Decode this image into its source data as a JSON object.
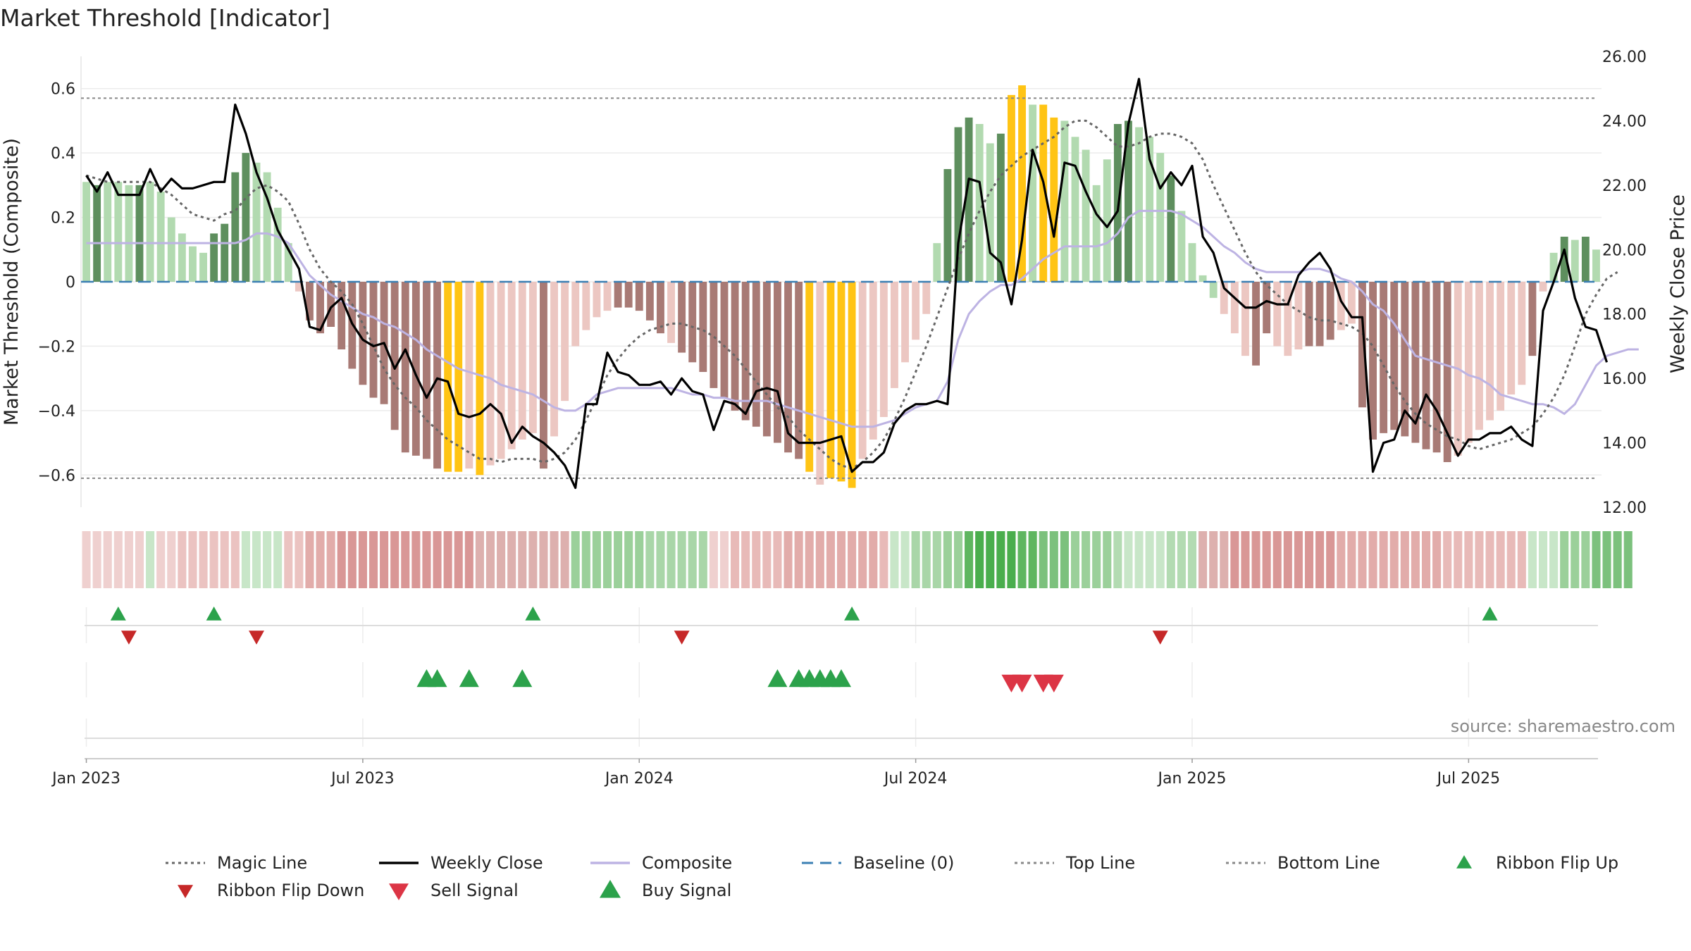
{
  "chart_data": {
    "type": "bar",
    "title": "Market Threshold [Indicator]",
    "source": "source: sharemaestro.com",
    "ylabel_left": "Market Threshold (Composite)",
    "ylabel_right": "Weekly Close Price",
    "ylim_left": [
      -0.7,
      0.7
    ],
    "ylim_right": [
      12,
      26
    ],
    "yticks_left": [
      "0.6",
      "0.4",
      "0.2",
      "0",
      "−0.2",
      "−0.4",
      "−0.6"
    ],
    "yticks_left_values": [
      0.6,
      0.4,
      0.2,
      0,
      -0.2,
      -0.4,
      -0.6
    ],
    "yticks_right": [
      "26.00",
      "24.00",
      "22.00",
      "20.00",
      "18.00",
      "16.00",
      "14.00",
      "12.00"
    ],
    "yticks_right_values": [
      26,
      24,
      22,
      20,
      18,
      16,
      14,
      12
    ],
    "xticks": [
      "Jan 2023",
      "Jul 2023",
      "Jan 2024",
      "Jul 2024",
      "Jan 2025",
      "Jul 2025"
    ],
    "xticks_week_index": [
      0.5,
      26.5,
      52.5,
      78.5,
      104.5,
      130.5
    ],
    "top_line": 0.57,
    "bottom_line": -0.61,
    "composite_values": [
      0.31,
      0.3,
      0.31,
      0.31,
      0.3,
      0.3,
      0.31,
      0.28,
      0.2,
      0.15,
      0.11,
      0.09,
      0.15,
      0.18,
      0.34,
      0.4,
      0.37,
      0.34,
      0.23,
      0.12,
      -0.03,
      -0.12,
      -0.16,
      -0.14,
      -0.21,
      -0.27,
      -0.32,
      -0.36,
      -0.38,
      -0.46,
      -0.53,
      -0.54,
      -0.55,
      -0.58,
      -0.59,
      -0.59,
      -0.58,
      -0.6,
      -0.57,
      -0.55,
      -0.52,
      -0.49,
      -0.47,
      -0.58,
      -0.48,
      -0.37,
      -0.2,
      -0.15,
      -0.11,
      -0.09,
      -0.08,
      -0.08,
      -0.09,
      -0.12,
      -0.16,
      -0.19,
      -0.22,
      -0.25,
      -0.28,
      -0.33,
      -0.36,
      -0.4,
      -0.43,
      -0.45,
      -0.48,
      -0.5,
      -0.53,
      -0.55,
      -0.59,
      -0.63,
      -0.61,
      -0.62,
      -0.64,
      -0.55,
      -0.49,
      -0.42,
      -0.33,
      -0.25,
      -0.18,
      -0.1,
      0.12,
      0.35,
      0.48,
      0.51,
      0.49,
      0.43,
      0.46,
      0.58,
      0.61,
      0.55,
      0.55,
      0.51,
      0.5,
      0.45,
      0.41,
      0.3,
      0.38,
      0.49,
      0.5,
      0.48,
      0.45,
      0.4,
      0.33,
      0.22,
      0.12,
      0.02,
      -0.05,
      -0.1,
      -0.16,
      -0.23,
      -0.26,
      -0.16,
      -0.2,
      -0.23,
      -0.21,
      -0.2,
      -0.2,
      -0.18,
      -0.15,
      -0.13,
      -0.39,
      -0.49,
      -0.47,
      -0.46,
      -0.48,
      -0.5,
      -0.52,
      -0.53,
      -0.56,
      -0.54,
      -0.5,
      -0.46,
      -0.43,
      -0.4,
      -0.35,
      -0.32,
      -0.23,
      -0.03,
      0.09,
      0.14,
      0.13,
      0.14,
      0.1
    ],
    "composite_bar_colors": [
      "#b2dab0",
      "#5e8f5e",
      "#b2dab0",
      "#b2dab0",
      "#b2dab0",
      "#5e8f5e",
      "#b2dab0",
      "#b2dab0",
      "#b2dab0",
      "#b2dab0",
      "#b2dab0",
      "#b2dab0",
      "#5e8f5e",
      "#5e8f5e",
      "#5e8f5e",
      "#5e8f5e",
      "#b2dab0",
      "#b2dab0",
      "#b2dab0",
      "#b2dab0",
      "#ecc7c2",
      "#a87a75",
      "#a87a75",
      "#a87a75",
      "#a87a75",
      "#a87a75",
      "#a87a75",
      "#a87a75",
      "#a87a75",
      "#a87a75",
      "#a87a75",
      "#a87a75",
      "#a87a75",
      "#a87a75",
      "#ffc414",
      "#ffc414",
      "#ecc7c2",
      "#ffc414",
      "#ecc7c2",
      "#ecc7c2",
      "#ecc7c2",
      "#ecc7c2",
      "#ecc7c2",
      "#a87a75",
      "#ecc7c2",
      "#ecc7c2",
      "#ecc7c2",
      "#ecc7c2",
      "#ecc7c2",
      "#ecc7c2",
      "#a87a75",
      "#a87a75",
      "#a87a75",
      "#a87a75",
      "#a87a75",
      "#ecc7c2",
      "#a87a75",
      "#a87a75",
      "#a87a75",
      "#a87a75",
      "#a87a75",
      "#a87a75",
      "#a87a75",
      "#a87a75",
      "#a87a75",
      "#a87a75",
      "#a87a75",
      "#a87a75",
      "#ffc414",
      "#ecc7c2",
      "#ffc414",
      "#ffc414",
      "#ffc414",
      "#ecc7c2",
      "#ecc7c2",
      "#ecc7c2",
      "#ecc7c2",
      "#ecc7c2",
      "#ecc7c2",
      "#ecc7c2",
      "#b2dab0",
      "#5e8f5e",
      "#5e8f5e",
      "#5e8f5e",
      "#b2dab0",
      "#b2dab0",
      "#5e8f5e",
      "#ffc414",
      "#ffc414",
      "#b2dab0",
      "#ffc414",
      "#ffc414",
      "#b2dab0",
      "#b2dab0",
      "#b2dab0",
      "#b2dab0",
      "#b2dab0",
      "#5e8f5e",
      "#5e8f5e",
      "#b2dab0",
      "#b2dab0",
      "#b2dab0",
      "#5e8f5e",
      "#b2dab0",
      "#b2dab0",
      "#b2dab0",
      "#b2dab0",
      "#ecc7c2",
      "#ecc7c2",
      "#ecc7c2",
      "#a87a75",
      "#a87a75",
      "#ecc7c2",
      "#ecc7c2",
      "#ecc7c2",
      "#a87a75",
      "#a87a75",
      "#a87a75",
      "#ecc7c2",
      "#ecc7c2",
      "#a87a75",
      "#a87a75",
      "#a87a75",
      "#a87a75",
      "#a87a75",
      "#a87a75",
      "#a87a75",
      "#a87a75",
      "#a87a75",
      "#ecc7c2",
      "#ecc7c2",
      "#ecc7c2",
      "#ecc7c2",
      "#ecc7c2",
      "#ecc7c2",
      "#ecc7c2",
      "#a87a75",
      "#ecc7c2",
      "#b2dab0",
      "#5e8f5e",
      "#b2dab0",
      "#5e8f5e",
      "#b2dab0"
    ],
    "weekly_close": [
      22.3,
      21.8,
      22.4,
      21.7,
      21.7,
      21.7,
      22.5,
      21.8,
      22.2,
      21.9,
      21.9,
      22.0,
      22.1,
      22.1,
      24.5,
      23.6,
      22.4,
      21.6,
      20.6,
      20.0,
      19.4,
      17.6,
      17.5,
      18.2,
      18.5,
      17.7,
      17.2,
      17.0,
      17.1,
      16.3,
      16.9,
      16.1,
      15.4,
      16.0,
      15.9,
      14.9,
      14.8,
      14.9,
      15.2,
      14.9,
      14.0,
      14.5,
      14.2,
      14.0,
      13.7,
      13.3,
      12.6,
      15.2,
      15.2,
      16.8,
      16.2,
      16.1,
      15.8,
      15.8,
      15.9,
      15.5,
      16.0,
      15.6,
      15.5,
      14.4,
      15.3,
      15.2,
      14.9,
      15.6,
      15.7,
      15.6,
      14.3,
      14.0,
      14.0,
      14.0,
      14.1,
      14.2,
      13.1,
      13.4,
      13.4,
      13.7,
      14.6,
      15.0,
      15.2,
      15.2,
      15.3,
      15.2,
      20.2,
      22.2,
      22.1,
      19.9,
      19.6,
      18.3,
      20.3,
      23.1,
      22.1,
      20.4,
      22.7,
      22.6,
      21.8,
      21.1,
      20.7,
      21.2,
      23.9,
      25.3,
      22.8,
      21.9,
      22.4,
      22.0,
      22.6,
      20.4,
      19.9,
      18.8,
      18.5,
      18.2,
      18.2,
      18.4,
      18.3,
      18.3,
      19.2,
      19.6,
      19.9,
      19.4,
      18.4,
      17.9,
      17.9,
      13.1,
      14.0,
      14.1,
      15.0,
      14.6,
      15.5,
      15.0,
      14.3,
      13.6,
      14.1,
      14.1,
      14.3,
      14.3,
      14.5,
      14.1,
      13.9,
      18.1,
      19.0,
      20.0,
      18.5,
      17.6,
      17.5,
      16.5
    ],
    "composite_line": [
      0.12,
      0.12,
      0.12,
      0.12,
      0.12,
      0.12,
      0.12,
      0.12,
      0.12,
      0.12,
      0.12,
      0.12,
      0.12,
      0.12,
      0.12,
      0.13,
      0.15,
      0.15,
      0.14,
      0.12,
      0.07,
      0.02,
      -0.01,
      -0.04,
      -0.06,
      -0.08,
      -0.1,
      -0.11,
      -0.13,
      -0.14,
      -0.16,
      -0.18,
      -0.21,
      -0.23,
      -0.25,
      -0.27,
      -0.28,
      -0.29,
      -0.3,
      -0.32,
      -0.33,
      -0.34,
      -0.35,
      -0.37,
      -0.39,
      -0.4,
      -0.4,
      -0.38,
      -0.35,
      -0.34,
      -0.33,
      -0.33,
      -0.33,
      -0.33,
      -0.33,
      -0.33,
      -0.34,
      -0.35,
      -0.35,
      -0.36,
      -0.36,
      -0.37,
      -0.37,
      -0.37,
      -0.37,
      -0.38,
      -0.39,
      -0.4,
      -0.41,
      -0.42,
      -0.43,
      -0.44,
      -0.45,
      -0.45,
      -0.45,
      -0.44,
      -0.43,
      -0.41,
      -0.39,
      -0.38,
      -0.37,
      -0.31,
      -0.18,
      -0.1,
      -0.06,
      -0.03,
      -0.01,
      -0.01,
      0.01,
      0.04,
      0.07,
      0.09,
      0.11,
      0.11,
      0.11,
      0.11,
      0.12,
      0.15,
      0.2,
      0.22,
      0.22,
      0.22,
      0.22,
      0.21,
      0.19,
      0.17,
      0.14,
      0.11,
      0.09,
      0.06,
      0.04,
      0.03,
      0.03,
      0.03,
      0.03,
      0.04,
      0.04,
      0.03,
      0.01,
      0.0,
      -0.03,
      -0.07,
      -0.09,
      -0.13,
      -0.18,
      -0.23,
      -0.24,
      -0.25,
      -0.26,
      -0.27,
      -0.29,
      -0.3,
      -0.32,
      -0.35,
      -0.36,
      -0.37,
      -0.38,
      -0.38,
      -0.39,
      -0.41,
      -0.38,
      -0.32,
      -0.26,
      -0.23,
      -0.22,
      -0.21,
      -0.21
    ],
    "magic_line": [
      0.33,
      0.32,
      0.31,
      0.31,
      0.31,
      0.31,
      0.31,
      0.29,
      0.27,
      0.24,
      0.21,
      0.2,
      0.19,
      0.21,
      0.22,
      0.26,
      0.29,
      0.3,
      0.28,
      0.25,
      0.18,
      0.1,
      0.04,
      0.0,
      -0.03,
      -0.07,
      -0.13,
      -0.2,
      -0.27,
      -0.32,
      -0.36,
      -0.39,
      -0.43,
      -0.46,
      -0.49,
      -0.51,
      -0.53,
      -0.55,
      -0.55,
      -0.56,
      -0.55,
      -0.55,
      -0.55,
      -0.56,
      -0.55,
      -0.53,
      -0.49,
      -0.43,
      -0.36,
      -0.29,
      -0.24,
      -0.2,
      -0.17,
      -0.15,
      -0.14,
      -0.13,
      -0.13,
      -0.14,
      -0.15,
      -0.17,
      -0.2,
      -0.23,
      -0.27,
      -0.31,
      -0.35,
      -0.39,
      -0.42,
      -0.46,
      -0.49,
      -0.52,
      -0.55,
      -0.57,
      -0.58,
      -0.56,
      -0.53,
      -0.49,
      -0.43,
      -0.36,
      -0.28,
      -0.2,
      -0.11,
      -0.02,
      0.07,
      0.15,
      0.22,
      0.28,
      0.33,
      0.36,
      0.39,
      0.41,
      0.43,
      0.45,
      0.48,
      0.5,
      0.5,
      0.48,
      0.45,
      0.42,
      0.42,
      0.43,
      0.45,
      0.46,
      0.46,
      0.45,
      0.43,
      0.38,
      0.3,
      0.23,
      0.16,
      0.09,
      0.03,
      -0.01,
      -0.04,
      -0.07,
      -0.09,
      -0.11,
      -0.12,
      -0.12,
      -0.13,
      -0.14,
      -0.16,
      -0.2,
      -0.26,
      -0.32,
      -0.37,
      -0.41,
      -0.44,
      -0.46,
      -0.48,
      -0.49,
      -0.51,
      -0.52,
      -0.51,
      -0.5,
      -0.49,
      -0.47,
      -0.45,
      -0.41,
      -0.36,
      -0.29,
      -0.2,
      -0.1,
      -0.04,
      0.01,
      0.03
    ],
    "ribbon_colors": [
      "#efd0cf",
      "#efd0cf",
      "#efd0cf",
      "#efd0cf",
      "#efd0cf",
      "#efd0cf",
      "#c8e6c8",
      "#efd0cf",
      "#efd0cf",
      "#ebc3c1",
      "#ebc3c1",
      "#ebc3c1",
      "#ebc3c1",
      "#ebc3c1",
      "#ebc3c1",
      "#c8e6c8",
      "#c8e6c8",
      "#c8e6c8",
      "#c8e6c8",
      "#ebc3c1",
      "#ebc3c1",
      "#e2acaa",
      "#e2acaa",
      "#e2acaa",
      "#d99796",
      "#d99796",
      "#d99796",
      "#d99796",
      "#d99796",
      "#d99796",
      "#d99796",
      "#d99796",
      "#d99796",
      "#d99796",
      "#d99796",
      "#d99796",
      "#d99796",
      "#ddb0ae",
      "#ddb0ae",
      "#ddb0ae",
      "#ddb0ae",
      "#ddb0ae",
      "#ddb0ae",
      "#ddb0ae",
      "#ddb0ae",
      "#ddb0ae",
      "#9bd09a",
      "#9bd09a",
      "#9bd09a",
      "#9bd09a",
      "#9bd09a",
      "#9bd09a",
      "#9bd09a",
      "#a9d6a8",
      "#a9d6a8",
      "#a9d6a8",
      "#a9d6a8",
      "#a9d6a8",
      "#a9d6a8",
      "#efd0cf",
      "#efd0cf",
      "#e8bab8",
      "#e8bab8",
      "#e8bab8",
      "#e8bab8",
      "#e8bab8",
      "#e2acaa",
      "#e2acaa",
      "#e2acaa",
      "#e2acaa",
      "#e2acaa",
      "#e2acaa",
      "#e2acaa",
      "#e2acaa",
      "#e2acaa",
      "#e8bab8",
      "#c8e6c8",
      "#c8e6c8",
      "#a9d6a8",
      "#a9d6a8",
      "#a9d6a8",
      "#9bd09a",
      "#9bd09a",
      "#5fb660",
      "#4aae4d",
      "#4aae4d",
      "#4aae4d",
      "#4aae4d",
      "#5fb660",
      "#5fb660",
      "#7cc17d",
      "#7cc17d",
      "#7cc17d",
      "#9bd09a",
      "#9bd09a",
      "#9bd09a",
      "#9bd09a",
      "#b3dbb2",
      "#c8e6c8",
      "#c8e6c8",
      "#c8e6c8",
      "#c8e6c8",
      "#b3dbb2",
      "#b3dbb2",
      "#b3dbb2",
      "#ddb0ae",
      "#ddb0ae",
      "#ddb0ae",
      "#d99796",
      "#d99796",
      "#d99796",
      "#d99796",
      "#d99796",
      "#d99796",
      "#d99796",
      "#d99796",
      "#d99796",
      "#d99796",
      "#e2acaa",
      "#e2acaa",
      "#e2acaa",
      "#e2acaa",
      "#e2acaa",
      "#e2acaa",
      "#e2acaa",
      "#e2acaa",
      "#e2acaa",
      "#e2acaa",
      "#e8bab8",
      "#e8bab8",
      "#e8bab8",
      "#e8bab8",
      "#e8bab8",
      "#e8bab8",
      "#e8bab8",
      "#e8bab8",
      "#c8e6c8",
      "#c8e6c8",
      "#c8e6c8",
      "#9bd09a",
      "#9bd09a",
      "#9bd09a",
      "#7cc17d",
      "#7cc17d",
      "#7cc17d",
      "#7cc17d"
    ],
    "ribbon_flip_up_weeks": [
      3.5,
      12.5,
      42.5,
      72.5,
      132.5
    ],
    "ribbon_flip_down_weeks": [
      4.5,
      16.5,
      56.5,
      101.5
    ],
    "buy_signal_weeks": [
      32.5,
      33.5,
      36.5,
      41.5,
      65.5,
      67.5,
      68.5,
      69.5,
      70.5,
      71.5
    ],
    "sell_signal_weeks": [
      87.5,
      88.5,
      90.5,
      91.5
    ],
    "legend": [
      {
        "label": "Magic Line",
        "style": "dotted",
        "color": "#666666"
      },
      {
        "label": "Weekly Close",
        "style": "solid",
        "color": "#000000"
      },
      {
        "label": "Composite",
        "style": "solid",
        "color": "#bdb3e3"
      },
      {
        "label": "Baseline (0)",
        "style": "dashed",
        "color": "#3b7fb3"
      },
      {
        "label": "Top Line",
        "style": "dotted",
        "color": "#888888"
      },
      {
        "label": "Bottom Line",
        "style": "dotted",
        "color": "#888888"
      },
      {
        "label": "Ribbon Flip Up",
        "style": "triangle-up",
        "color": "#2ca24b"
      },
      {
        "label": "Ribbon Flip Down",
        "style": "triangle-down",
        "color": "#c62828"
      },
      {
        "label": "Sell Signal",
        "style": "triangle-down",
        "color": "#dc3545"
      },
      {
        "label": "Buy Signal",
        "style": "triangle-up",
        "color": "#2ca24b"
      }
    ],
    "legend_placement": "bottom",
    "grid": true,
    "colors": {
      "strong_up": "#5e8f5e",
      "weak_up": "#b2dab0",
      "strong_down": "#a87a75",
      "weak_down": "#ecc7c2",
      "extreme": "#ffc414",
      "baseline": "#3b7fb3"
    }
  }
}
